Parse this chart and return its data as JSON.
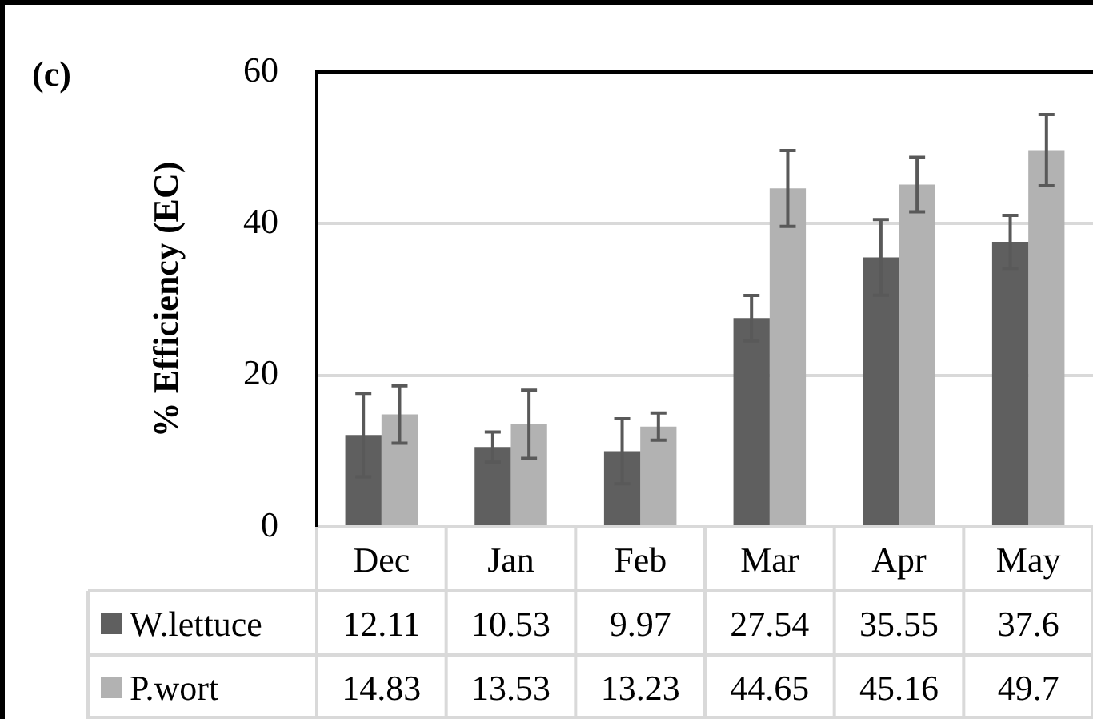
{
  "chart_data": {
    "type": "bar",
    "title": "(c)",
    "ylabel": "% Efficiency (EC)",
    "categories": [
      "Dec",
      "Jan",
      "Feb",
      "Mar",
      "Apr",
      "May"
    ],
    "series": [
      {
        "name": "W.lettuce",
        "color": "#5f5f5f",
        "values": [
          12.11,
          10.53,
          9.97,
          27.54,
          35.55,
          37.6
        ],
        "errors": [
          5.5,
          2,
          4.3,
          3,
          5,
          3.5
        ]
      },
      {
        "name": "P.wort",
        "color": "#b2b2b2",
        "values": [
          14.83,
          13.53,
          13.23,
          44.65,
          45.16,
          49.7
        ],
        "errors": [
          3.8,
          4.5,
          1.8,
          5,
          3.6,
          4.7
        ]
      }
    ],
    "ylim": [
      0,
      60
    ],
    "yticks": [
      0,
      20,
      40,
      60
    ],
    "grid": "y",
    "legend": "bottom",
    "data_labels": true
  }
}
